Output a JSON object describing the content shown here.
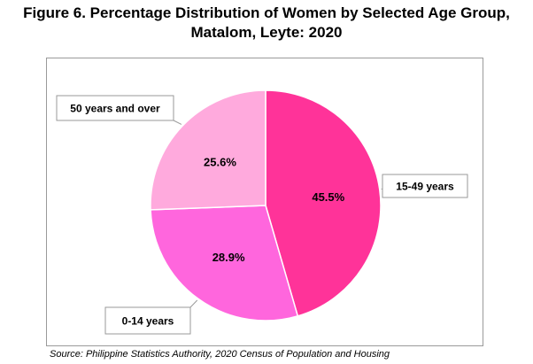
{
  "title": {
    "line1": "Figure 6. Percentage Distribution of Women by Selected Age Group,",
    "line2": "Matalom, Leyte: 2020"
  },
  "source": "Source: Philippine Statistics Authority, 2020 Census of Population and Housing",
  "chart_data": {
    "type": "pie",
    "title": "Figure 6. Percentage Distribution of Women by Selected Age Group, Matalom, Leyte: 2020",
    "start_angle_deg": 0,
    "direction": "clockwise",
    "slices": [
      {
        "label": "15-49 years",
        "value": 45.5,
        "value_label": "45.5%",
        "color": "#ff3399"
      },
      {
        "label": "0-14 years",
        "value": 28.9,
        "value_label": "28.9%",
        "color": "#ff66dd"
      },
      {
        "label": "50 years and over",
        "value": 25.6,
        "value_label": "25.6%",
        "color": "#ffaadd"
      }
    ],
    "legend": "none",
    "callout_labels": true
  }
}
